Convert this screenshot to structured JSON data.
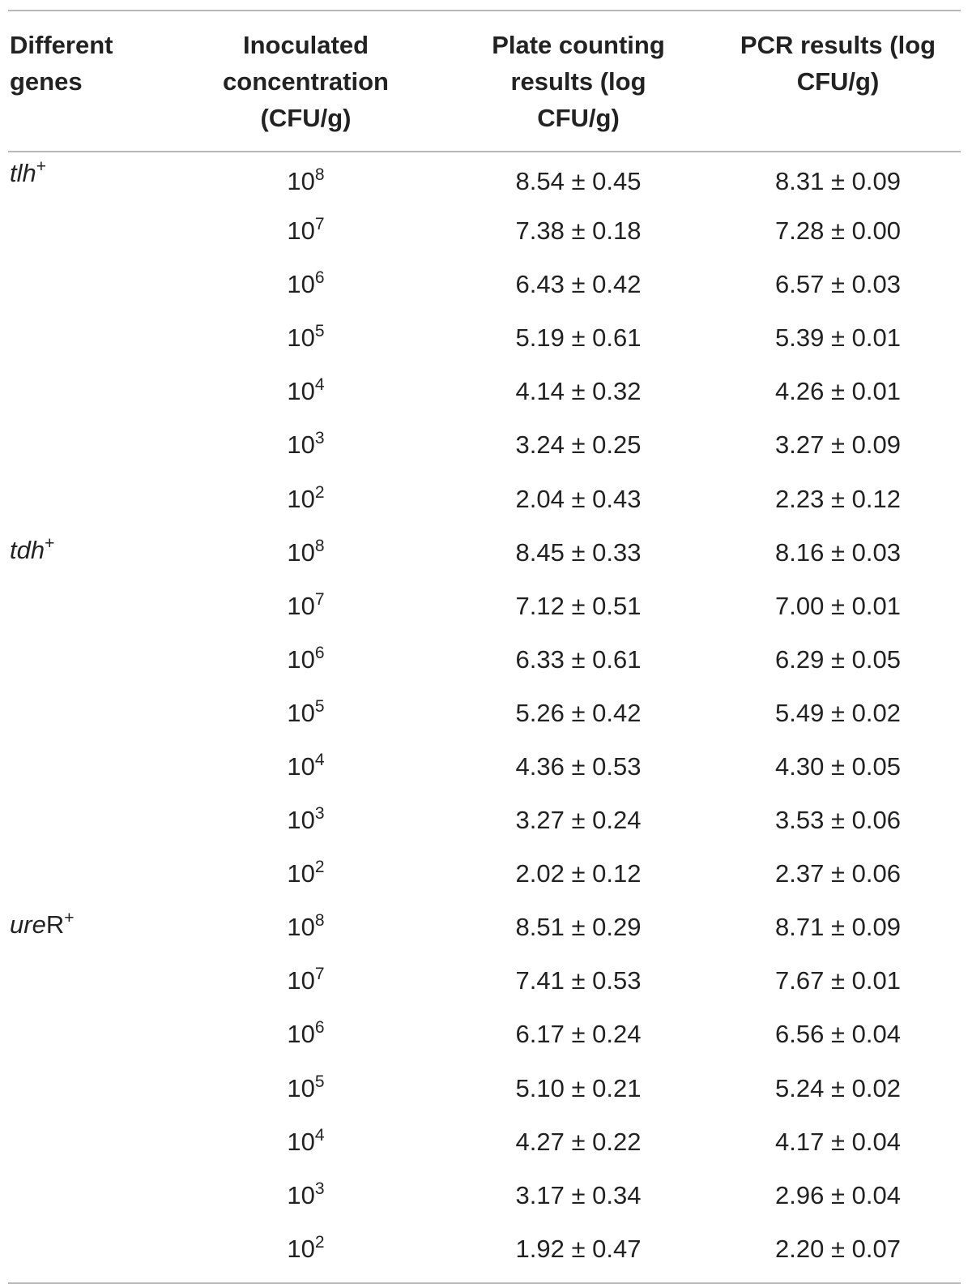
{
  "headers": [
    "Different genes",
    "Inoculated concentration (CFU/g)",
    "Plate counting results (log CFU/g)",
    "PCR results (log CFU/g)"
  ],
  "header_lines": {
    "col1": [
      "Different",
      "genes"
    ],
    "col2": [
      "Inoculated",
      "concentration",
      "(CFU/g)"
    ],
    "col3": [
      "Plate counting",
      "results (log",
      "CFU/g)"
    ],
    "col4": [
      "PCR results (log",
      "CFU/g)"
    ]
  },
  "groups": [
    {
      "gene_italic": "tlh",
      "gene_suffix": "",
      "gene_sup": "+",
      "rows": [
        {
          "base": "10",
          "exp": "8",
          "plate": "8.54 ± 0.45",
          "pcr": "8.31 ± 0.09"
        },
        {
          "base": "10",
          "exp": "7",
          "plate": "7.38 ± 0.18",
          "pcr": "7.28 ± 0.00"
        },
        {
          "base": "10",
          "exp": "6",
          "plate": "6.43 ± 0.42",
          "pcr": "6.57 ± 0.03"
        },
        {
          "base": "10",
          "exp": "5",
          "plate": "5.19 ± 0.61",
          "pcr": "5.39 ± 0.01"
        },
        {
          "base": "10",
          "exp": "4",
          "plate": "4.14 ± 0.32",
          "pcr": "4.26 ± 0.01"
        },
        {
          "base": "10",
          "exp": "3",
          "plate": "3.24 ± 0.25",
          "pcr": "3.27 ± 0.09"
        },
        {
          "base": "10",
          "exp": "2",
          "plate": "2.04 ± 0.43",
          "pcr": "2.23 ± 0.12"
        }
      ]
    },
    {
      "gene_italic": "tdh",
      "gene_suffix": "",
      "gene_sup": "+",
      "rows": [
        {
          "base": "10",
          "exp": "8",
          "plate": "8.45 ± 0.33",
          "pcr": "8.16 ± 0.03"
        },
        {
          "base": "10",
          "exp": "7",
          "plate": "7.12 ± 0.51",
          "pcr": "7.00 ± 0.01"
        },
        {
          "base": "10",
          "exp": "6",
          "plate": "6.33 ± 0.61",
          "pcr": "6.29 ± 0.05"
        },
        {
          "base": "10",
          "exp": "5",
          "plate": "5.26 ± 0.42",
          "pcr": "5.49 ± 0.02"
        },
        {
          "base": "10",
          "exp": "4",
          "plate": "4.36 ± 0.53",
          "pcr": "4.30 ± 0.05"
        },
        {
          "base": "10",
          "exp": "3",
          "plate": "3.27 ± 0.24",
          "pcr": "3.53 ± 0.06"
        },
        {
          "base": "10",
          "exp": "2",
          "plate": "2.02 ± 0.12",
          "pcr": "2.37 ± 0.06"
        }
      ]
    },
    {
      "gene_italic": "ure",
      "gene_suffix": "R",
      "gene_sup": "+",
      "rows": [
        {
          "base": "10",
          "exp": "8",
          "plate": "8.51 ± 0.29",
          "pcr": "8.71 ± 0.09"
        },
        {
          "base": "10",
          "exp": "7",
          "plate": "7.41 ± 0.53",
          "pcr": "7.67 ± 0.01"
        },
        {
          "base": "10",
          "exp": "6",
          "plate": "6.17 ± 0.24",
          "pcr": "6.56 ± 0.04"
        },
        {
          "base": "10",
          "exp": "5",
          "plate": "5.10 ± 0.21",
          "pcr": "5.24 ± 0.02"
        },
        {
          "base": "10",
          "exp": "4",
          "plate": "4.27 ± 0.22",
          "pcr": "4.17 ± 0.04"
        },
        {
          "base": "10",
          "exp": "3",
          "plate": "3.17 ± 0.34",
          "pcr": "2.96 ± 0.04"
        },
        {
          "base": "10",
          "exp": "2",
          "plate": "1.92 ± 0.47",
          "pcr": "2.20 ± 0.07"
        }
      ]
    }
  ]
}
